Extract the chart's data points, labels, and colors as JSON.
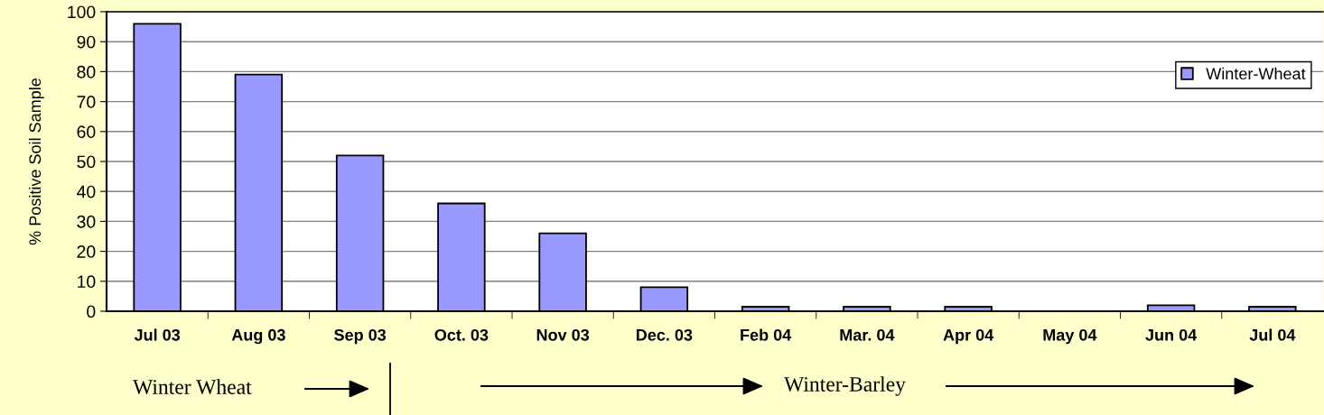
{
  "chart_data": {
    "type": "bar",
    "ylabel": "% Positive Soil Sample",
    "categories": [
      "Jul 03",
      "Aug 03",
      "Sep 03",
      "Oct. 03",
      "Nov 03",
      "Dec. 03",
      "Feb 04",
      "Mar. 04",
      "Apr 04",
      "May 04",
      "Jun 04",
      "Jul 04"
    ],
    "series": [
      {
        "name": "Winter-Wheat",
        "color": "#9999ff",
        "values": [
          96,
          79,
          52,
          36,
          26,
          8,
          1.5,
          1.5,
          1.5,
          null,
          2,
          1.5
        ]
      }
    ],
    "ylim": [
      0,
      100
    ],
    "yticks": [
      0,
      10,
      20,
      30,
      40,
      50,
      60,
      70,
      80,
      90,
      100
    ],
    "grid": "y",
    "legend": "top right",
    "annotations": [
      "Winter Wheat",
      "Winter-Barley"
    ]
  }
}
